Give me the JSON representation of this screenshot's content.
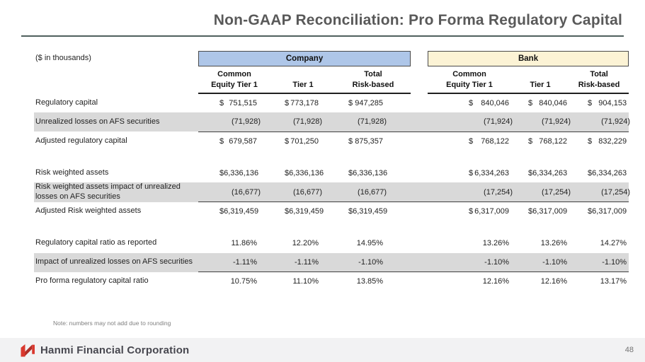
{
  "slide": {
    "title": "Non-GAAP Reconciliation: Pro Forma Regulatory Capital",
    "units_label": "($ in thousands)",
    "note": "Note: numbers may not add due to rounding",
    "page_number": "48",
    "footer_brand": "Hanmi Financial Corporation"
  },
  "colors": {
    "company_header_fill": "#AEC6E8",
    "bank_header_fill": "#FCF3D5",
    "shaded_row": "#D9D9D9",
    "title_gray": "#595959",
    "logo_red": "#D9382E",
    "footer_band": "#F2F2F3"
  },
  "table": {
    "groups": [
      {
        "label": "Company"
      },
      {
        "label": "Bank"
      }
    ],
    "column_headers": [
      "Common\nEquity Tier 1",
      "Tier 1",
      "Total\nRisk-based"
    ],
    "sections": [
      {
        "rows": [
          {
            "label": "Regulatory capital",
            "dollar": true,
            "shaded": false,
            "company": [
              "751,515",
              "773,178",
              "947,285"
            ],
            "bank": [
              "840,046",
              "840,046",
              "904,153"
            ]
          },
          {
            "label": "Unrealized losses on AFS securities",
            "dollar": false,
            "shaded": true,
            "rule_below": true,
            "company": [
              "(71,928)",
              "(71,928)",
              "(71,928)"
            ],
            "bank": [
              "(71,924)",
              "(71,924)",
              "(71,924)"
            ]
          },
          {
            "label": "Adjusted regulatory capital",
            "dollar": true,
            "shaded": false,
            "company": [
              "679,587",
              "701,250",
              "875,357"
            ],
            "bank": [
              "768,122",
              "768,122",
              "832,229"
            ]
          }
        ]
      },
      {
        "rows": [
          {
            "label": "Risk weighted assets",
            "dollar": true,
            "shaded": false,
            "company": [
              "6,336,136",
              "6,336,136",
              "6,336,136"
            ],
            "bank": [
              "6,334,263",
              "6,334,263",
              "6,334,263"
            ]
          },
          {
            "label": "Risk weighted assets impact of unrealized losses on AFS securities",
            "dollar": false,
            "shaded": true,
            "rule_below": true,
            "company": [
              "(16,677)",
              "(16,677)",
              "(16,677)"
            ],
            "bank": [
              "(17,254)",
              "(17,254)",
              "(17,254)"
            ]
          },
          {
            "label": "Adjusted Risk weighted assets",
            "dollar": true,
            "shaded": false,
            "company": [
              "6,319,459",
              "6,319,459",
              "6,319,459"
            ],
            "bank": [
              "6,317,009",
              "6,317,009",
              "6,317,009"
            ]
          }
        ]
      },
      {
        "rows": [
          {
            "label": "Regulatory capital ratio as reported",
            "dollar": false,
            "shaded": false,
            "company": [
              "11.86%",
              "12.20%",
              "14.95%"
            ],
            "bank": [
              "13.26%",
              "13.26%",
              "14.27%"
            ]
          },
          {
            "label": "Impact of unrealized losses on AFS securities",
            "dollar": false,
            "shaded": true,
            "rule_below": true,
            "company": [
              "-1.11%",
              "-1.11%",
              "-1.10%"
            ],
            "bank": [
              "-1.10%",
              "-1.10%",
              "-1.10%"
            ]
          },
          {
            "label": "Pro forma regulatory capital ratio",
            "dollar": false,
            "shaded": false,
            "company": [
              "10.75%",
              "11.10%",
              "13.85%"
            ],
            "bank": [
              "12.16%",
              "12.16%",
              "13.17%"
            ]
          }
        ]
      }
    ]
  }
}
